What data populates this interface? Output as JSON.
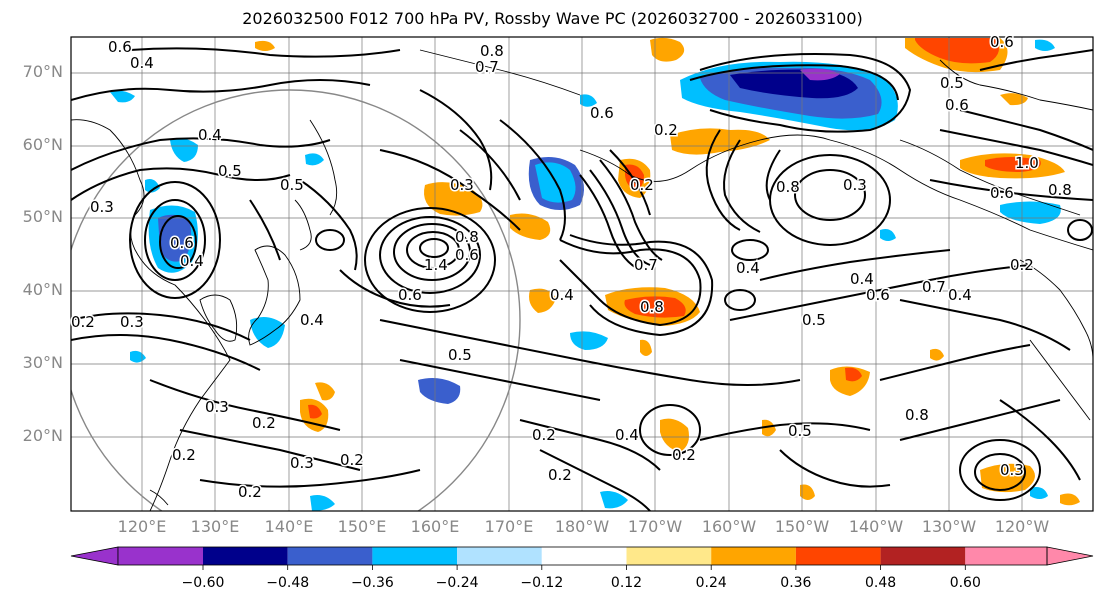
{
  "title": "2026032500 F012 700 hPa PV, Rossby Wave PC (2026032700 - 2026033100)",
  "lat_labels": [
    "70°N",
    "60°N",
    "50°N",
    "40°N",
    "30°N",
    "20°N"
  ],
  "lon_labels": [
    "120°E",
    "130°E",
    "140°E",
    "150°E",
    "160°E",
    "170°E",
    "180°W",
    "170°W",
    "160°W",
    "150°W",
    "140°W",
    "130°W",
    "120°W"
  ],
  "colorbar": {
    "ticks": [
      "−0.60",
      "−0.48",
      "−0.36",
      "−0.24",
      "−0.12",
      "0.12",
      "0.24",
      "0.36",
      "0.48",
      "0.60"
    ],
    "colors": [
      "#9932cc",
      "#00008b",
      "#3a5fcd",
      "#00bfff",
      "#b0e2ff",
      "#ffffff",
      "#ffe88a",
      "#ffa500",
      "#ff4500",
      "#b22222",
      "#ff88aa"
    ]
  },
  "contour_labels": [
    "0.6",
    "0.4",
    "0.8",
    "0.7",
    "0.6",
    "0.5",
    "0.4",
    "0.6",
    "0.5",
    "0.3",
    "0.6",
    "0.4",
    "0.6",
    "1.4",
    "0.8",
    "0.6",
    "0.2",
    "0.8",
    "0.3",
    "0.2",
    "0.4",
    "0.7",
    "0.8",
    "0.4",
    "0.5",
    "0.3",
    "0.4",
    "0.6",
    "0.7",
    "0.4",
    "0.2",
    "0.3",
    "0.5",
    "0.2",
    "0.2",
    "0.3",
    "0.2",
    "0.4",
    "0.2",
    "0.2",
    "0.5",
    "0.2",
    "0.2",
    "0.4",
    "0.2",
    "1.0",
    "0.8",
    "0.6",
    "0.5",
    "0.6",
    "0.3",
    "0.8",
    "0.3"
  ]
}
